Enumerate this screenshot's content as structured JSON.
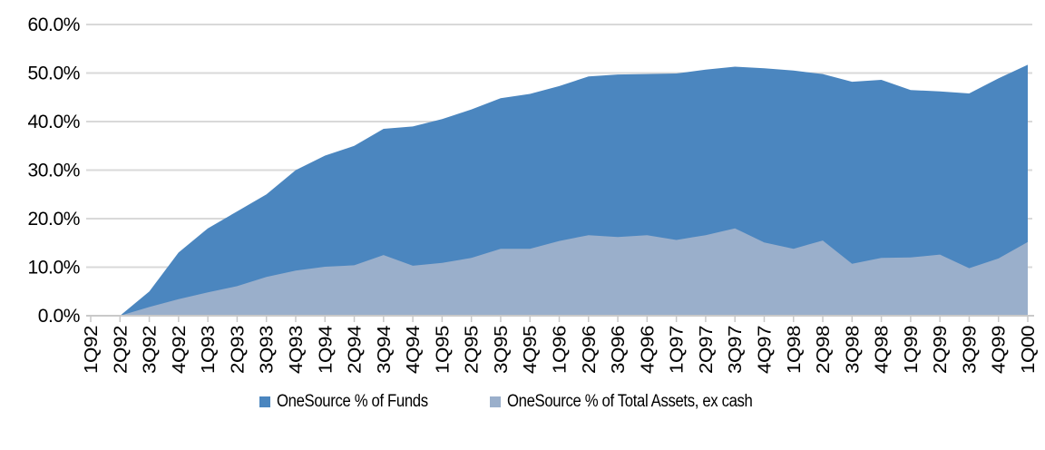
{
  "chart_data": {
    "type": "area",
    "title": "",
    "xlabel": "",
    "ylabel": "",
    "ylim": [
      0,
      60
    ],
    "y_ticks": [
      60,
      50,
      40,
      30,
      20,
      10,
      0
    ],
    "y_tick_labels": [
      "60.0%",
      "50.0%",
      "40.0%",
      "30.0%",
      "20.0%",
      "10.0%",
      "0.0%"
    ],
    "grid": "horizontal",
    "legend_position": "bottom",
    "categories": [
      "1Q92",
      "2Q92",
      "3Q92",
      "4Q92",
      "1Q93",
      "2Q93",
      "3Q93",
      "4Q93",
      "1Q94",
      "2Q94",
      "3Q94",
      "4Q94",
      "1Q95",
      "2Q95",
      "3Q95",
      "4Q95",
      "1Q96",
      "2Q96",
      "3Q96",
      "4Q96",
      "1Q97",
      "2Q97",
      "3Q97",
      "4Q97",
      "1Q98",
      "2Q98",
      "3Q98",
      "4Q98",
      "1Q99",
      "2Q99",
      "3Q99",
      "4Q99",
      "1Q00"
    ],
    "series": [
      {
        "name": "OneSource % of Funds",
        "color": "#4B86BF",
        "values": [
          0,
          0,
          5.0,
          13.0,
          18.0,
          21.5,
          25.0,
          30.0,
          33.0,
          35.0,
          38.5,
          39.0,
          40.5,
          42.5,
          44.8,
          45.7,
          47.3,
          49.3,
          49.7,
          49.8,
          49.9,
          50.7,
          51.3,
          51.0,
          50.5,
          49.8,
          48.2,
          48.6,
          46.5,
          46.2,
          45.8,
          48.9,
          51.7
        ]
      },
      {
        "name": "OneSource % of Total Assets, ex cash",
        "color": "#9AAFCB",
        "values": [
          0,
          0,
          1.8,
          3.4,
          4.8,
          6.1,
          8.0,
          9.3,
          10.1,
          10.4,
          12.5,
          10.3,
          10.9,
          11.9,
          13.8,
          13.8,
          15.4,
          16.6,
          16.2,
          16.6,
          15.6,
          16.6,
          18.0,
          15.1,
          13.8,
          15.5,
          10.7,
          11.9,
          12.0,
          12.6,
          9.8,
          11.8,
          15.2
        ]
      }
    ],
    "colors": {
      "gridline": "#D9D9D9",
      "axis_line": "#C9C9C9",
      "tick": "#C9C9C9",
      "text": "#000000"
    }
  }
}
